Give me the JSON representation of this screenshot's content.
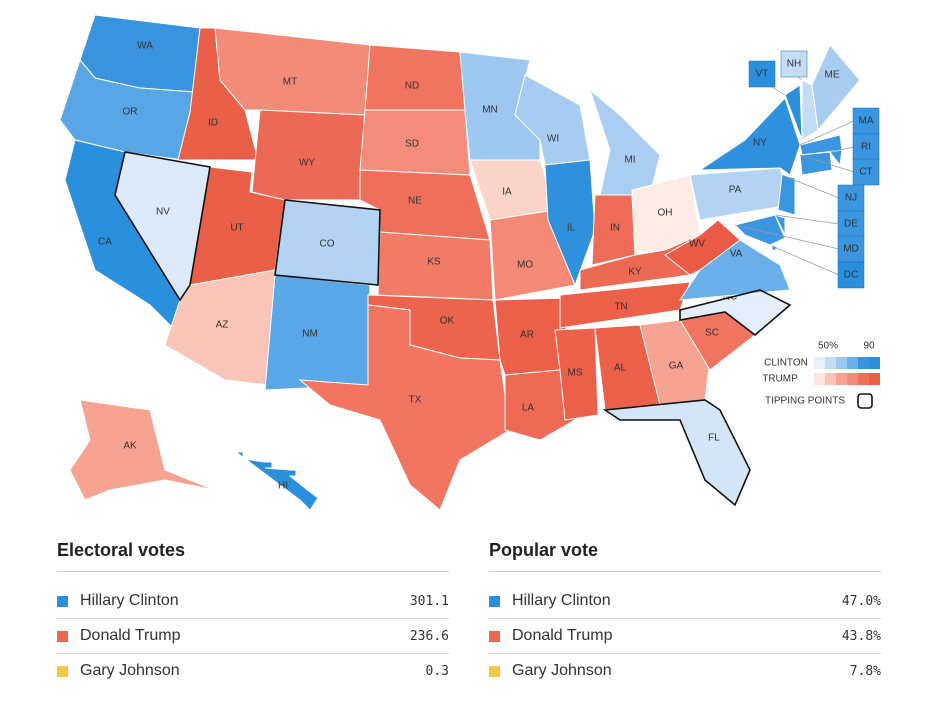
{
  "map": {
    "states": [
      {
        "abbr": "WA",
        "color": "#3a93de"
      },
      {
        "abbr": "OR",
        "color": "#58a6e6"
      },
      {
        "abbr": "CA",
        "color": "#2a8fdd"
      },
      {
        "abbr": "NV",
        "color": "#dbe9f8",
        "tipping": true
      },
      {
        "abbr": "ID",
        "color": "#ea5f48"
      },
      {
        "abbr": "MT",
        "color": "#f28b78"
      },
      {
        "abbr": "WY",
        "color": "#ec6a55"
      },
      {
        "abbr": "UT",
        "color": "#ea5f48"
      },
      {
        "abbr": "AZ",
        "color": "#f9c5b9"
      },
      {
        "abbr": "CO",
        "color": "#b4d3f2",
        "tipping": true
      },
      {
        "abbr": "NM",
        "color": "#5aa8e8"
      },
      {
        "abbr": "ND",
        "color": "#f07561"
      },
      {
        "abbr": "SD",
        "color": "#f48c7b"
      },
      {
        "abbr": "NE",
        "color": "#ef6f5b"
      },
      {
        "abbr": "KS",
        "color": "#f27b67"
      },
      {
        "abbr": "OK",
        "color": "#ec634e"
      },
      {
        "abbr": "TX",
        "color": "#f27561"
      },
      {
        "abbr": "MN",
        "color": "#9cc7f0"
      },
      {
        "abbr": "IA",
        "color": "#fad3c9"
      },
      {
        "abbr": "MO",
        "color": "#f48a76"
      },
      {
        "abbr": "AR",
        "color": "#ec5f49"
      },
      {
        "abbr": "LA",
        "color": "#ef6a55"
      },
      {
        "abbr": "WI",
        "color": "#a6cdf1"
      },
      {
        "abbr": "IL",
        "color": "#2f90de"
      },
      {
        "abbr": "MI",
        "color": "#a9cef1"
      },
      {
        "abbr": "IN",
        "color": "#ef6d58"
      },
      {
        "abbr": "OH",
        "color": "#fdebe5"
      },
      {
        "abbr": "KY",
        "color": "#ee6954"
      },
      {
        "abbr": "TN",
        "color": "#ec5f49"
      },
      {
        "abbr": "MS",
        "color": "#ec5f49"
      },
      {
        "abbr": "AL",
        "color": "#ec5f49"
      },
      {
        "abbr": "GA",
        "color": "#f7a391"
      },
      {
        "abbr": "FL",
        "color": "#d3e5f7",
        "tipping": true
      },
      {
        "abbr": "SC",
        "color": "#f07561"
      },
      {
        "abbr": "NC",
        "color": "#e3eefa",
        "tipping": true
      },
      {
        "abbr": "VA",
        "color": "#6aaeea"
      },
      {
        "abbr": "WV",
        "color": "#ea5a44"
      },
      {
        "abbr": "PA",
        "color": "#b4d3f2"
      },
      {
        "abbr": "NY",
        "color": "#2f90de"
      },
      {
        "abbr": "VT",
        "color": "#2a8fdd"
      },
      {
        "abbr": "NH",
        "color": "#c4dcf4"
      },
      {
        "abbr": "ME",
        "color": "#a8cdf1"
      },
      {
        "abbr": "MA",
        "color": "#3a96e0"
      },
      {
        "abbr": "RI",
        "color": "#3a96e0"
      },
      {
        "abbr": "CT",
        "color": "#3a96e0"
      },
      {
        "abbr": "NJ",
        "color": "#3a96e0"
      },
      {
        "abbr": "DE",
        "color": "#3a96e0"
      },
      {
        "abbr": "MD",
        "color": "#3a96e0"
      },
      {
        "abbr": "DC",
        "color": "#2a8fdd"
      },
      {
        "abbr": "AK",
        "color": "#f7a391"
      },
      {
        "abbr": "HI",
        "color": "#2a8fdd"
      }
    ],
    "legend": {
      "scale_low": "50%",
      "scale_high": "90",
      "clinton": "CLINTON",
      "trump": "TRUMP",
      "tipping": "TIPPING POINTS",
      "clinton_colors": [
        "#e6f0fb",
        "#c4dcf4",
        "#9cc7f0",
        "#6aaeea",
        "#3a93de",
        "#2a8fdd"
      ],
      "trump_colors": [
        "#fde6e0",
        "#f9c5b9",
        "#f7a391",
        "#f28b78",
        "#ef6f5b",
        "#ea5f48"
      ]
    }
  },
  "electoral": {
    "title": "Electoral votes",
    "rows": [
      {
        "name": "Hillary Clinton",
        "value": "301.1",
        "color": "#2a8fdd"
      },
      {
        "name": "Donald Trump",
        "value": "236.6",
        "color": "#ef6450"
      },
      {
        "name": "Gary Johnson",
        "value": "0.3",
        "color": "#f4c842"
      }
    ]
  },
  "popular": {
    "title": "Popular vote",
    "rows": [
      {
        "name": "Hillary Clinton",
        "value": "47.0%",
        "color": "#2a8fdd"
      },
      {
        "name": "Donald Trump",
        "value": "43.8%",
        "color": "#ef6450"
      },
      {
        "name": "Gary Johnson",
        "value": "7.8%",
        "color": "#f4c842"
      }
    ]
  }
}
